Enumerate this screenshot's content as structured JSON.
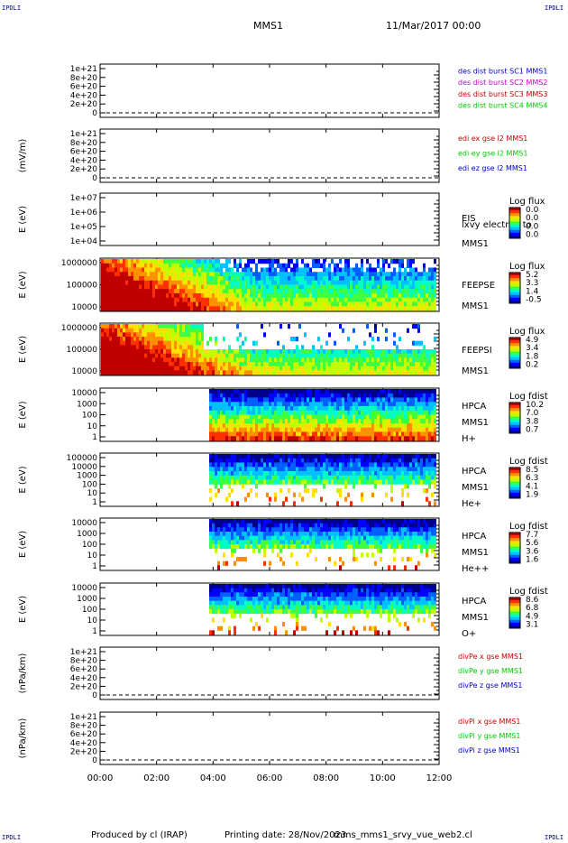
{
  "corners": {
    "tl": "IPDLI",
    "tr": "IPDLI",
    "bl": "IPDLI",
    "br": "IPDLI"
  },
  "header": {
    "title": "MMS1",
    "date": "11/Mar/2017 00:00"
  },
  "footer": {
    "produced": "Produced by cl (IRAP)",
    "printing": "Printing date: 28/Nov/2023",
    "file": "mms_mms1_srvy_vue_web2.cl"
  },
  "colors": {
    "plot_blue": "#0000cc",
    "plot_magenta": "#cc00cc",
    "plot_red": "#cc0000",
    "plot_green": "#00cc00",
    "frame": "#000000"
  },
  "chart_data": [
    {
      "type": "line",
      "ylabel": "",
      "yticks": [
        "1e+21",
        "8e+20",
        "6e+20",
        "4e+20",
        "2e+20",
        "0"
      ],
      "legend": [
        {
          "text": "des dist burst SC1 MMS1",
          "color": "#0000cc"
        },
        {
          "text": "des dist burst SC2 MMS2",
          "color": "#cc00cc"
        },
        {
          "text": "des dist burst SC3 MMS3",
          "color": "#cc0000"
        },
        {
          "text": "des dist burst SC4 MMS4",
          "color": "#00cc00"
        }
      ],
      "zero_line": true
    },
    {
      "type": "line",
      "ylabel": "(mV/m)",
      "yticks": [
        "1e+21",
        "8e+20",
        "6e+20",
        "4e+20",
        "2e+20",
        "0"
      ],
      "legend": [
        {
          "text": "edi ex gse l2 MMS1",
          "color": "#cc0000"
        },
        {
          "text": "edi ey gse l2 MMS1",
          "color": "#00cc00"
        },
        {
          "text": "edi ez gse l2 MMS1",
          "color": "#0000cc"
        }
      ],
      "zero_line": true
    },
    {
      "type": "heatmap",
      "ylabel": "E (eV)",
      "yticks": [
        "1e+07",
        "1e+06",
        "1e+05",
        "1e+04"
      ],
      "instrument": [
        "EIS",
        "lxvy electron to",
        "MMS1"
      ],
      "colorbar": {
        "title": "Log flux",
        "ticks": [
          "0.0",
          "0.0",
          "0.0",
          "0.0"
        ]
      },
      "coverage": "empty"
    },
    {
      "type": "heatmap",
      "ylabel": "E (eV)",
      "yticks": [
        "1000000",
        "100000",
        "10000"
      ],
      "instrument": [
        "FEEPSE",
        "MMS1"
      ],
      "colorbar": {
        "title": "Log flux",
        "ticks": [
          "5.2",
          "3.3",
          "1.4",
          "-0.5"
        ]
      },
      "coverage": "full"
    },
    {
      "type": "heatmap",
      "ylabel": "E (eV)",
      "yticks": [
        "1000000",
        "100000",
        "10000"
      ],
      "instrument": [
        "FEEPSI",
        "MMS1"
      ],
      "colorbar": {
        "title": "Log flux",
        "ticks": [
          "4.9",
          "3.4",
          "1.8",
          "0.2"
        ]
      },
      "coverage": "full"
    },
    {
      "type": "heatmap",
      "ylabel": "E (eV)",
      "yticks": [
        "10000",
        "1000",
        "100",
        "10",
        "1"
      ],
      "instrument": [
        "HPCA",
        "MMS1",
        "H+"
      ],
      "colorbar": {
        "title": "Log fdist",
        "ticks": [
          "10.2",
          "7.0",
          "3.8",
          "0.7"
        ]
      },
      "coverage": "from 03:55"
    },
    {
      "type": "heatmap",
      "ylabel": "E (eV)",
      "yticks": [
        "100000",
        "10000",
        "1000",
        "100",
        "10",
        "1"
      ],
      "instrument": [
        "HPCA",
        "MMS1",
        "He+"
      ],
      "colorbar": {
        "title": "Log fdist",
        "ticks": [
          "8.5",
          "6.3",
          "4.1",
          "1.9"
        ]
      },
      "coverage": "from 03:55"
    },
    {
      "type": "heatmap",
      "ylabel": "E (eV)",
      "yticks": [
        "10000",
        "1000",
        "100",
        "10",
        "1"
      ],
      "instrument": [
        "HPCA",
        "MMS1",
        "He++"
      ],
      "colorbar": {
        "title": "Log fdist",
        "ticks": [
          "7.7",
          "5.6",
          "3.6",
          "1.6"
        ]
      },
      "coverage": "from 03:55"
    },
    {
      "type": "heatmap",
      "ylabel": "E (eV)",
      "yticks": [
        "10000",
        "1000",
        "100",
        "10",
        "1"
      ],
      "instrument": [
        "HPCA",
        "MMS1",
        "O+"
      ],
      "colorbar": {
        "title": "Log fdist",
        "ticks": [
          "8.6",
          "6.8",
          "4.9",
          "3.1"
        ]
      },
      "coverage": "from 03:55"
    },
    {
      "type": "line",
      "ylabel": "(nPa/km)",
      "yticks": [
        "1e+21",
        "8e+20",
        "6e+20",
        "4e+20",
        "2e+20",
        "0"
      ],
      "legend": [
        {
          "text": "divPe x gse MMS1",
          "color": "#cc0000"
        },
        {
          "text": "divPe y gse MMS1",
          "color": "#00cc00"
        },
        {
          "text": "divPe z gse MMS1",
          "color": "#0000cc"
        }
      ],
      "zero_line": true
    },
    {
      "type": "line",
      "ylabel": "(nPa/km)",
      "yticks": [
        "1e+21",
        "8e+20",
        "6e+20",
        "4e+20",
        "2e+20",
        "0"
      ],
      "legend": [
        {
          "text": "divPi x gse MMS1",
          "color": "#cc0000"
        },
        {
          "text": "divPi y gse MMS1",
          "color": "#00cc00"
        },
        {
          "text": "divPi z gse MMS1",
          "color": "#0000cc"
        }
      ],
      "zero_line": true
    }
  ],
  "xaxis": {
    "ticks": [
      "00:00",
      "02:00",
      "04:00",
      "06:00",
      "08:00",
      "10:00",
      "12:00"
    ],
    "range": [
      "00:00",
      "12:00"
    ]
  }
}
